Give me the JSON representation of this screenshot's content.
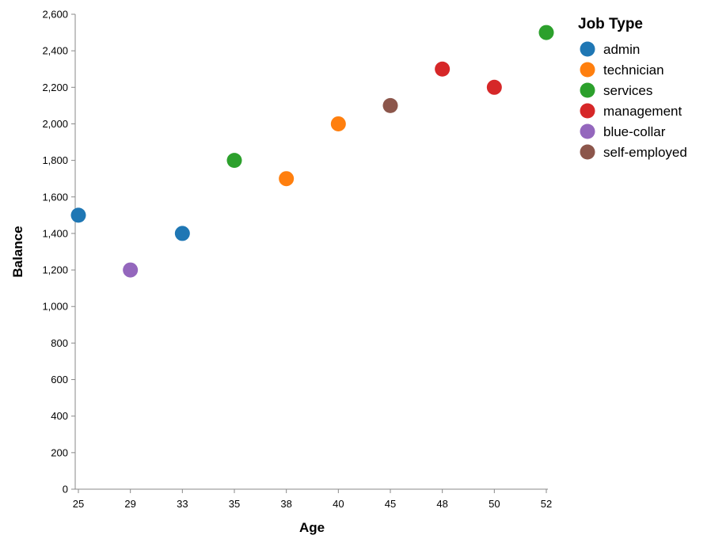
{
  "chart_data": {
    "type": "scatter",
    "xlabel": "Age",
    "ylabel": "Balance",
    "x_ticks": [
      "25",
      "29",
      "33",
      "35",
      "38",
      "40",
      "45",
      "48",
      "50",
      "52"
    ],
    "y_ticks": [
      "0",
      "200",
      "400",
      "600",
      "800",
      "1,000",
      "1,200",
      "1,400",
      "1,600",
      "1,800",
      "2,000",
      "2,200",
      "2,400",
      "2,600"
    ],
    "ylim": [
      0,
      2600
    ],
    "x_scale": "ordinal",
    "grid": false,
    "legend": {
      "title": "Job Type",
      "placement": "top-right",
      "entries": [
        "admin",
        "technician",
        "services",
        "management",
        "blue-collar",
        "self-employed"
      ]
    },
    "colors": {
      "admin": "#1f77b4",
      "technician": "#ff7f0e",
      "services": "#2ca02c",
      "management": "#d62728",
      "blue-collar": "#9467bd",
      "self-employed": "#8c564b"
    },
    "points": [
      {
        "x": "25",
        "y": 1500,
        "job": "admin"
      },
      {
        "x": "29",
        "y": 1200,
        "job": "blue-collar"
      },
      {
        "x": "33",
        "y": 1400,
        "job": "admin"
      },
      {
        "x": "35",
        "y": 1800,
        "job": "services"
      },
      {
        "x": "38",
        "y": 1700,
        "job": "technician"
      },
      {
        "x": "40",
        "y": 2000,
        "job": "technician"
      },
      {
        "x": "45",
        "y": 2100,
        "job": "self-employed"
      },
      {
        "x": "48",
        "y": 2300,
        "job": "management"
      },
      {
        "x": "50",
        "y": 2200,
        "job": "management"
      },
      {
        "x": "52",
        "y": 2500,
        "job": "services"
      }
    ]
  }
}
